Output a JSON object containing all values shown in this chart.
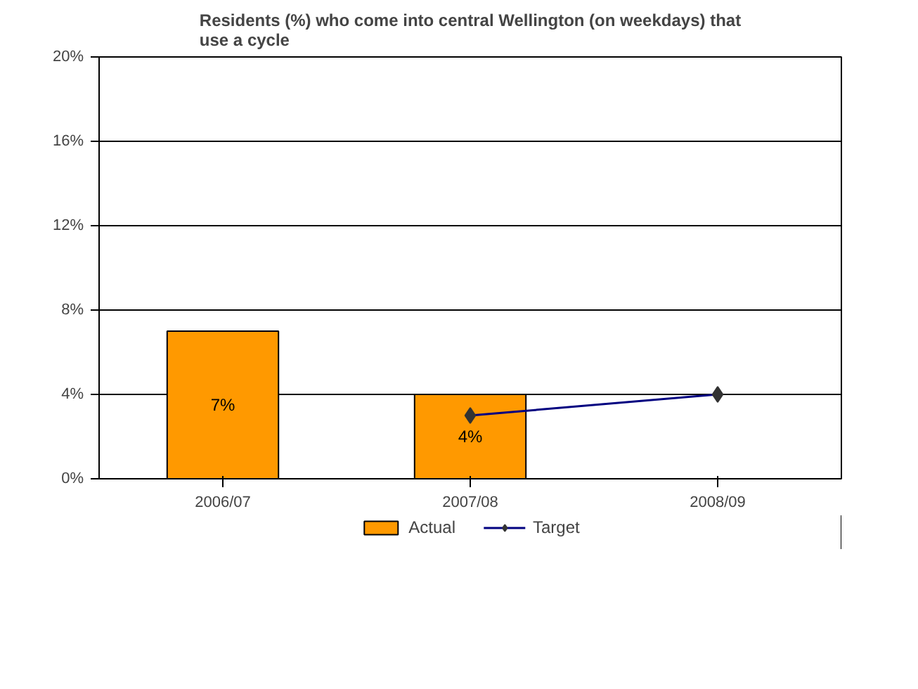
{
  "chart_data": {
    "type": "bar",
    "title": "Residents (%) who come into central Wellington (on weekdays) that use a cycle",
    "categories": [
      "2006/07",
      "2007/08",
      "2008/09"
    ],
    "series": [
      {
        "name": "Actual",
        "color": "#ff9900",
        "values": [
          7,
          4,
          null
        ],
        "value_labels": [
          "7%",
          "4%",
          null
        ]
      },
      {
        "name": "Target",
        "type": "line",
        "color": "#000080",
        "marker": "diamond",
        "values": [
          null,
          3,
          4
        ]
      }
    ],
    "ylim": [
      0,
      20
    ],
    "yticks": [
      {
        "value": 0,
        "label": "0%"
      },
      {
        "value": 4,
        "label": "4%"
      },
      {
        "value": 8,
        "label": "8%"
      },
      {
        "value": 12,
        "label": "12%"
      },
      {
        "value": 16,
        "label": "16%"
      },
      {
        "value": 20,
        "label": "20%"
      }
    ],
    "grid": "y",
    "legend": "bottom"
  }
}
